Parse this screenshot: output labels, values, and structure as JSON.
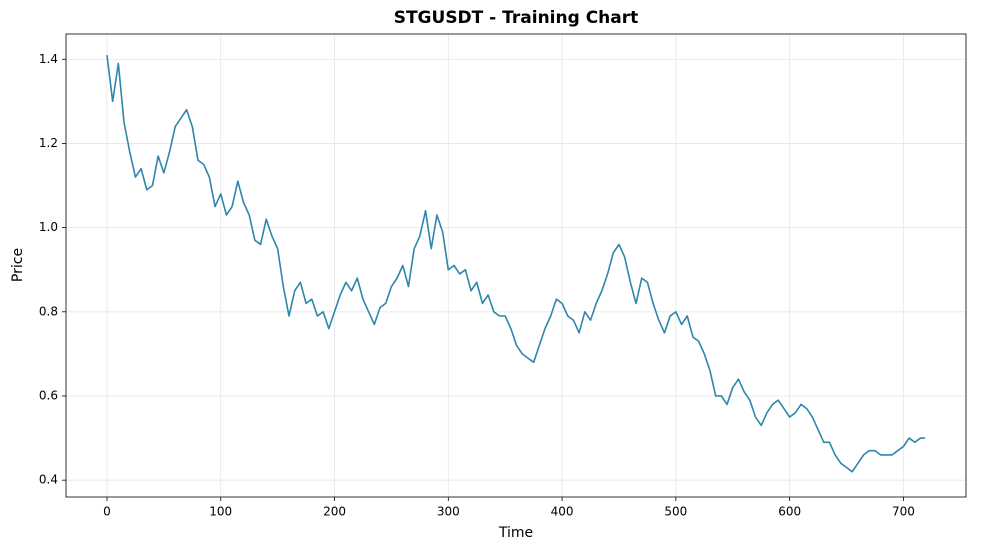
{
  "chart_data": {
    "type": "line",
    "title": "STGUSDT - Training Chart",
    "x_label": "Time",
    "y_label": "Price",
    "x": [
      0,
      5,
      10,
      15,
      20,
      25,
      30,
      35,
      40,
      45,
      50,
      55,
      60,
      65,
      70,
      75,
      80,
      85,
      90,
      95,
      100,
      105,
      110,
      115,
      120,
      125,
      130,
      135,
      140,
      145,
      150,
      155,
      160,
      165,
      170,
      175,
      180,
      185,
      190,
      195,
      200,
      205,
      210,
      215,
      220,
      225,
      230,
      235,
      240,
      245,
      250,
      255,
      260,
      265,
      270,
      275,
      280,
      285,
      290,
      295,
      300,
      305,
      310,
      315,
      320,
      325,
      330,
      335,
      340,
      345,
      350,
      355,
      360,
      365,
      370,
      375,
      380,
      385,
      390,
      395,
      400,
      405,
      410,
      415,
      420,
      425,
      430,
      435,
      440,
      445,
      450,
      455,
      460,
      465,
      470,
      475,
      480,
      485,
      490,
      495,
      500,
      505,
      510,
      515,
      520,
      525,
      530,
      535,
      540,
      545,
      550,
      555,
      560,
      565,
      570,
      575,
      580,
      585,
      590,
      595,
      600,
      605,
      610,
      615,
      620,
      625,
      630,
      635,
      640,
      645,
      650,
      655,
      660,
      665,
      670,
      675,
      680,
      685,
      690,
      695,
      700,
      705,
      710,
      715,
      719
    ],
    "series": [
      {
        "color": "#2e86ab",
        "values": [
          1.41,
          1.3,
          1.39,
          1.25,
          1.18,
          1.12,
          1.14,
          1.09,
          1.1,
          1.17,
          1.13,
          1.18,
          1.24,
          1.26,
          1.28,
          1.24,
          1.16,
          1.15,
          1.12,
          1.05,
          1.08,
          1.03,
          1.05,
          1.11,
          1.06,
          1.03,
          0.97,
          0.96,
          1.02,
          0.98,
          0.95,
          0.86,
          0.79,
          0.85,
          0.87,
          0.82,
          0.83,
          0.79,
          0.8,
          0.76,
          0.8,
          0.84,
          0.87,
          0.85,
          0.88,
          0.83,
          0.8,
          0.77,
          0.81,
          0.82,
          0.86,
          0.88,
          0.91,
          0.86,
          0.95,
          0.98,
          1.04,
          0.95,
          1.03,
          0.99,
          0.9,
          0.91,
          0.89,
          0.9,
          0.85,
          0.87,
          0.82,
          0.84,
          0.8,
          0.79,
          0.79,
          0.76,
          0.72,
          0.7,
          0.69,
          0.68,
          0.72,
          0.76,
          0.79,
          0.83,
          0.82,
          0.79,
          0.78,
          0.75,
          0.8,
          0.78,
          0.82,
          0.85,
          0.89,
          0.94,
          0.96,
          0.93,
          0.87,
          0.82,
          0.88,
          0.87,
          0.82,
          0.78,
          0.75,
          0.79,
          0.8,
          0.77,
          0.79,
          0.74,
          0.73,
          0.7,
          0.66,
          0.6,
          0.6,
          0.58,
          0.62,
          0.64,
          0.61,
          0.59,
          0.55,
          0.53,
          0.56,
          0.58,
          0.59,
          0.57,
          0.55,
          0.56,
          0.58,
          0.57,
          0.55,
          0.52,
          0.49,
          0.49,
          0.46,
          0.44,
          0.43,
          0.42,
          0.44,
          0.46,
          0.47,
          0.47,
          0.46,
          0.46,
          0.46,
          0.47,
          0.48,
          0.5,
          0.49,
          0.5,
          0.5
        ]
      }
    ],
    "xlim": [
      -36,
      755
    ],
    "xticks": [
      0,
      100,
      200,
      300,
      400,
      500,
      600,
      700
    ],
    "ylim": [
      0.36,
      1.46
    ],
    "yticks": [
      0.4,
      0.6,
      0.8,
      {
        "value": 1.0,
        "label": "1.0"
      },
      1.2,
      1.4
    ],
    "grid": true
  }
}
